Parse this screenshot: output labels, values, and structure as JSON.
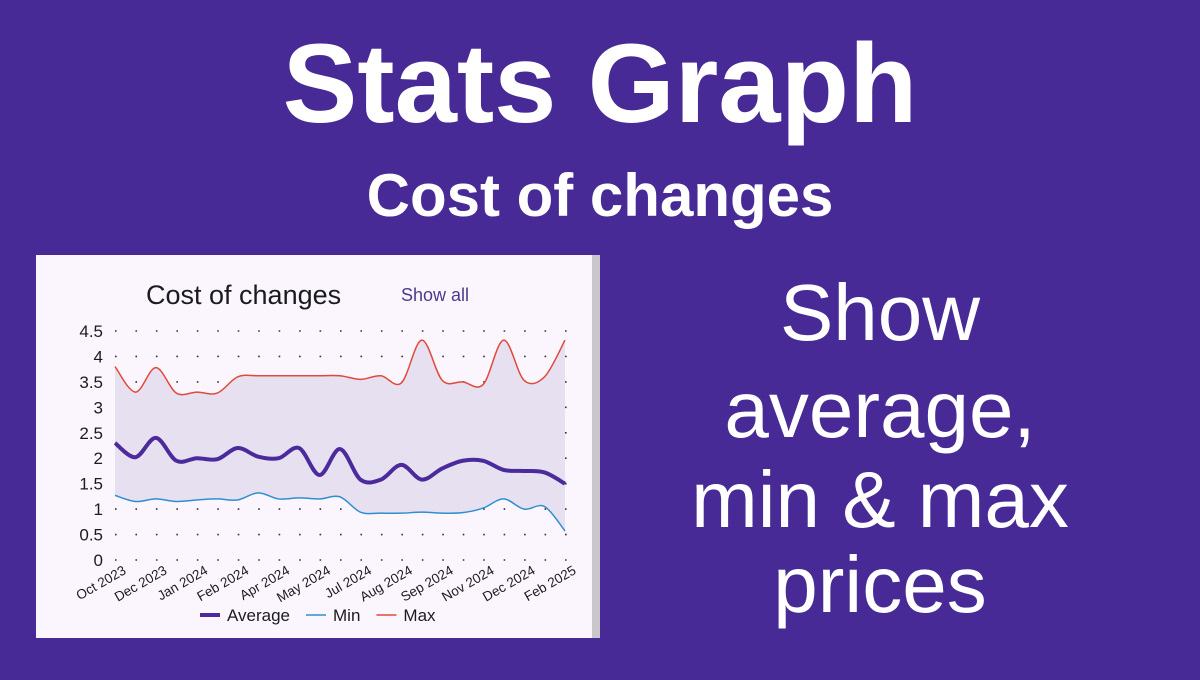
{
  "header": {
    "title": "Stats Graph",
    "subtitle": "Cost of changes"
  },
  "card": {
    "link": "Show all"
  },
  "side_text": [
    "Show",
    "average,",
    "min & max",
    "prices"
  ],
  "chart_data": {
    "type": "line",
    "title": "Cost of changes",
    "categories": [
      "Oct 2023",
      null,
      "Dec 2023",
      null,
      "Jan 2024",
      null,
      "Feb 2024",
      null,
      "Apr 2024",
      null,
      "May 2024",
      null,
      "Jul 2024",
      null,
      "Aug 2024",
      null,
      "Sep 2024",
      null,
      "Nov 2024",
      null,
      "Dec 2024",
      null,
      "Feb 2025"
    ],
    "series": [
      {
        "name": "Average",
        "color": "#4b2a9c",
        "values": [
          2.3,
          2.02,
          2.4,
          1.95,
          2.0,
          1.98,
          2.2,
          2.03,
          2.0,
          2.2,
          1.67,
          2.18,
          1.58,
          1.58,
          1.87,
          1.58,
          1.8,
          1.95,
          1.95,
          1.77,
          1.75,
          1.72,
          1.5
        ]
      },
      {
        "name": "Min",
        "color": "#2e8fd0",
        "values": [
          1.27,
          1.15,
          1.2,
          1.15,
          1.18,
          1.2,
          1.18,
          1.32,
          1.2,
          1.22,
          1.2,
          1.24,
          0.94,
          0.92,
          0.92,
          0.94,
          0.92,
          0.93,
          1.02,
          1.2,
          1.0,
          1.05,
          0.57
        ]
      },
      {
        "name": "Max",
        "color": "#e04a3a",
        "values": [
          3.8,
          3.3,
          3.78,
          3.28,
          3.3,
          3.28,
          3.6,
          3.62,
          3.62,
          3.62,
          3.62,
          3.62,
          3.55,
          3.62,
          3.48,
          4.32,
          3.53,
          3.5,
          3.45,
          4.32,
          3.53,
          3.6,
          4.32
        ]
      }
    ],
    "ylim": [
      0,
      4.5
    ],
    "yticks": [
      0,
      0.5,
      1,
      1.5,
      2,
      2.5,
      3,
      3.5,
      4,
      4.5
    ],
    "grid": true,
    "legend": "bottom",
    "band_color": "#e7e0f1"
  }
}
